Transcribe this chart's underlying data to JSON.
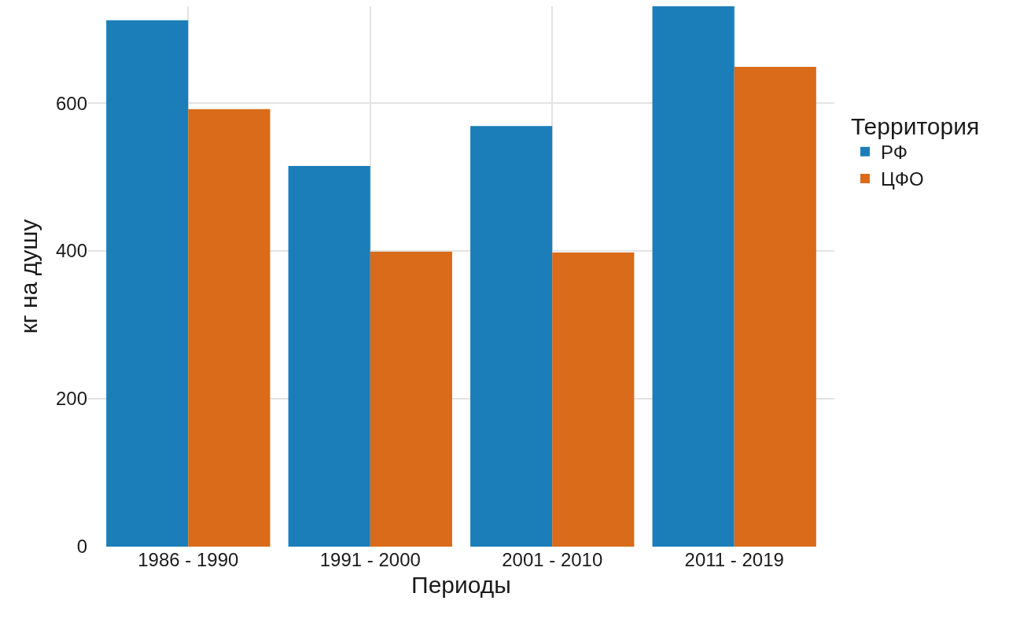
{
  "chart_data": {
    "type": "bar",
    "xlabel": "Периоды",
    "ylabel": "кг на душу",
    "legend_title": "Территория",
    "categories": [
      "1986 - 1990",
      "1991 - 2000",
      "2001 - 2010",
      "2011 - 2019"
    ],
    "series": [
      {
        "name": "РФ",
        "color": "#1b7eb8",
        "values": [
          712,
          515,
          569,
          731
        ]
      },
      {
        "name": "ЦФО",
        "color": "#d96b1a",
        "values": [
          592,
          399,
          398,
          649
        ]
      }
    ],
    "ylim": [
      0,
      731
    ],
    "yticks": [
      0,
      200,
      400,
      600
    ],
    "grid": true,
    "legend": "right"
  }
}
